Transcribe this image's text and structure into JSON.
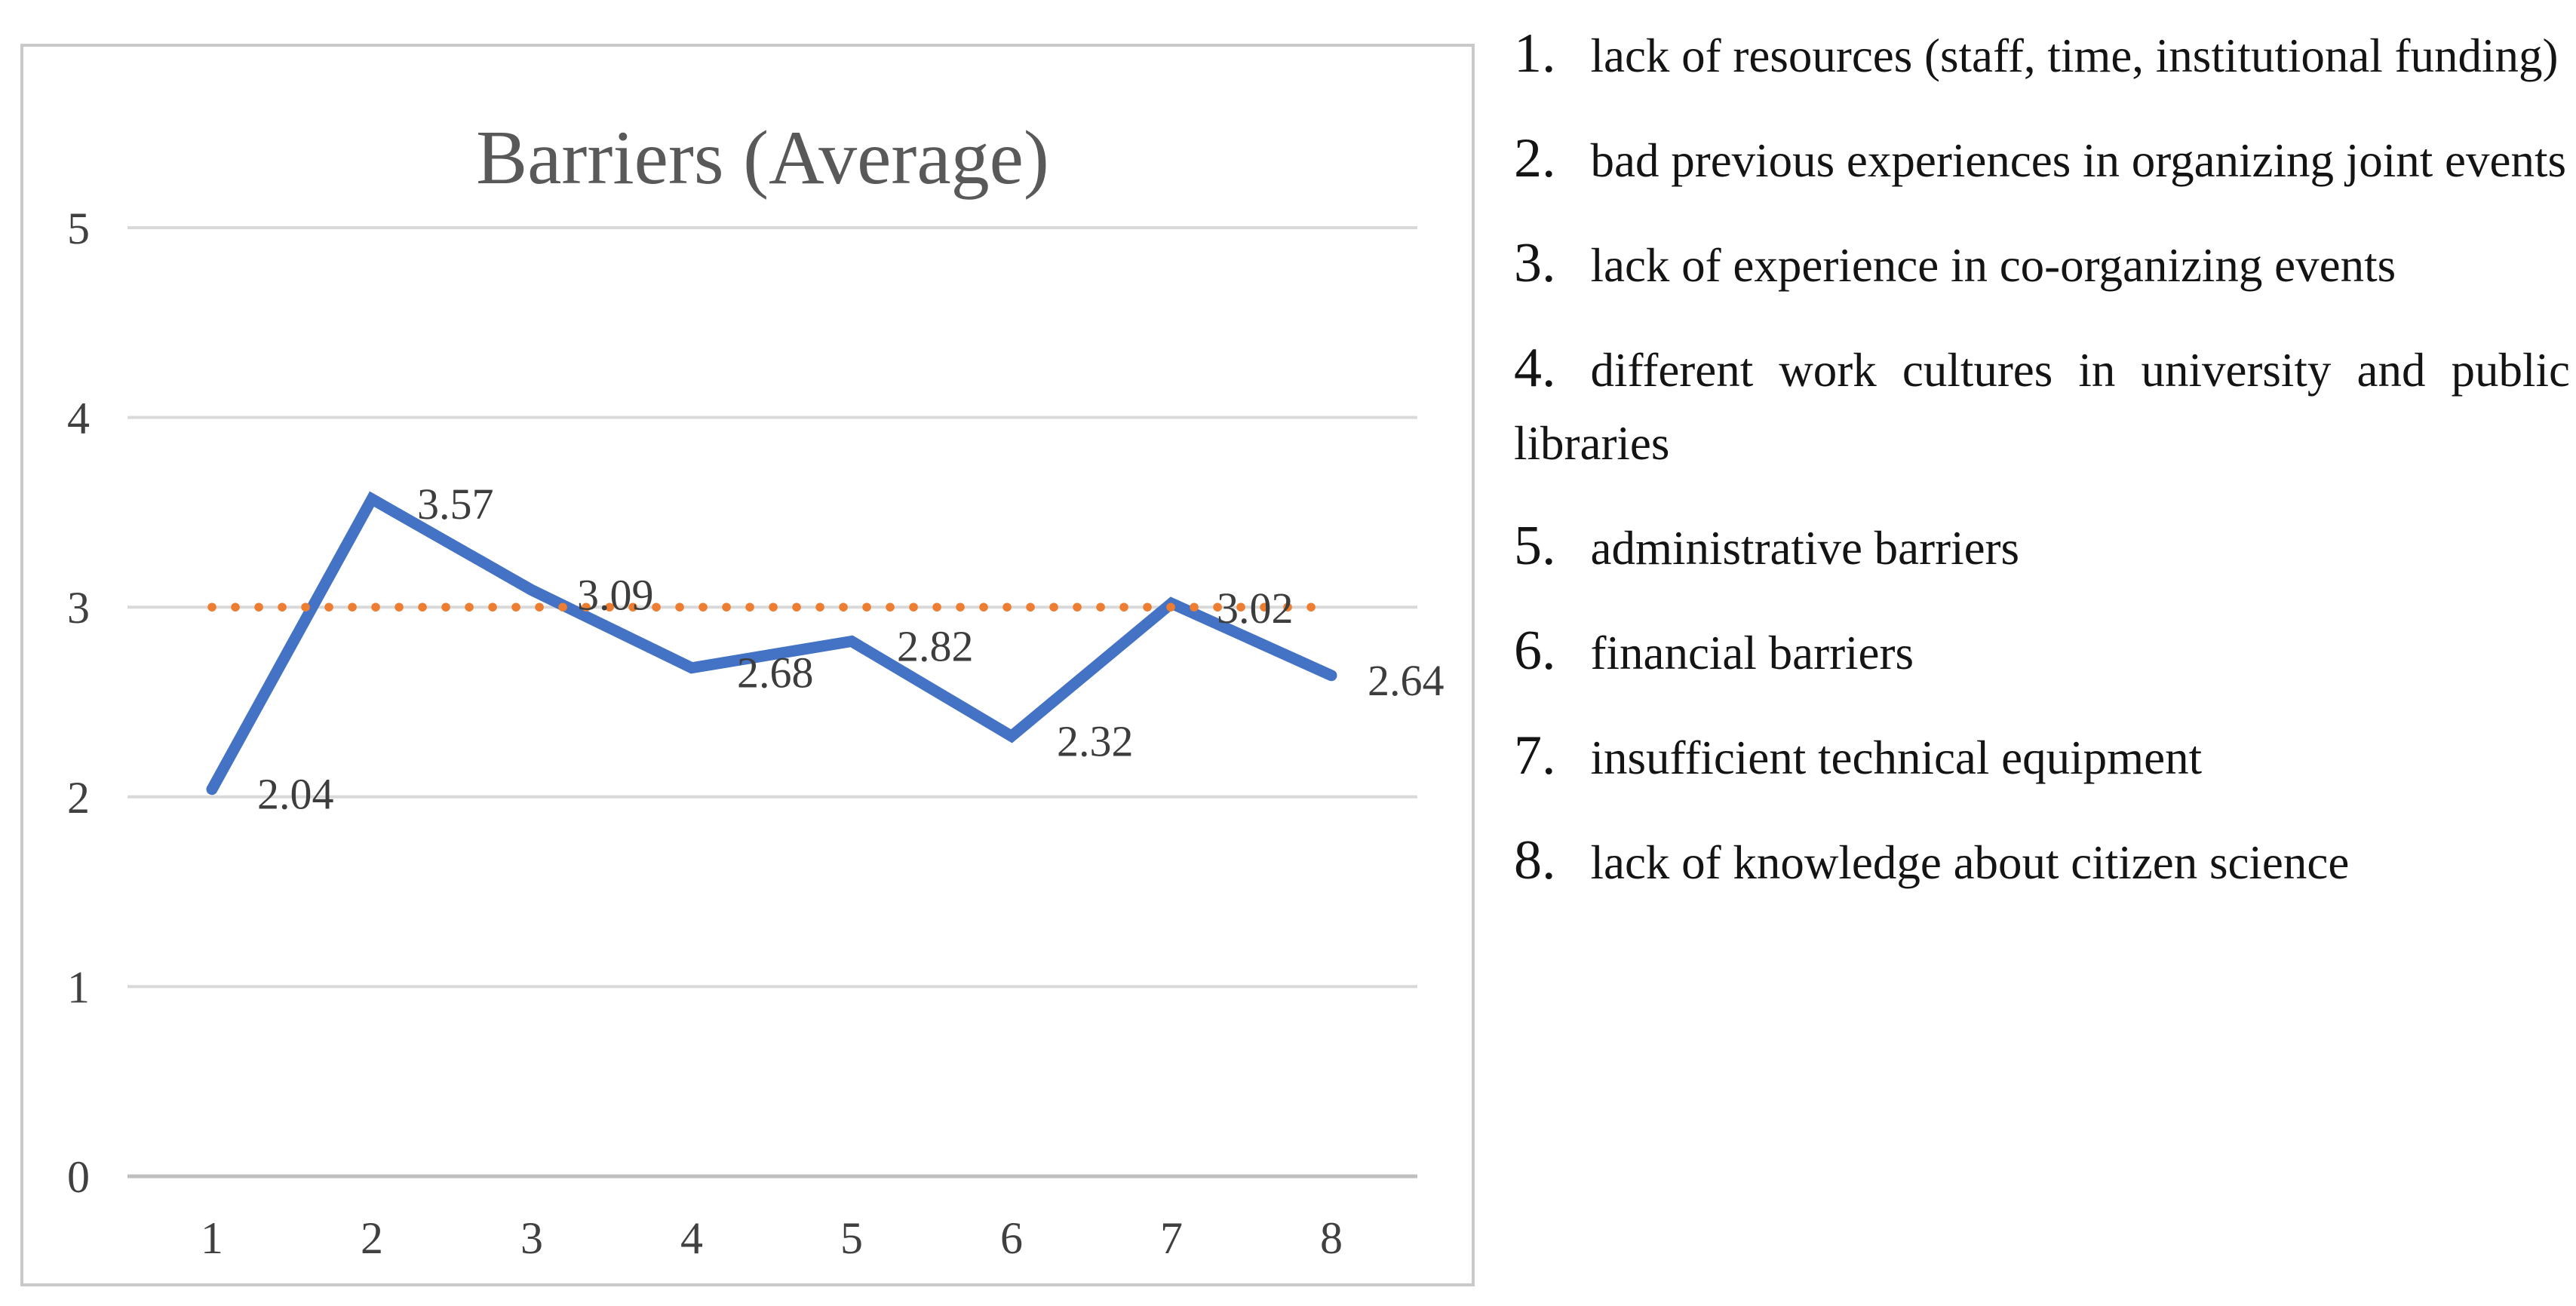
{
  "chart_data": {
    "type": "line",
    "title": "Barriers (Average)",
    "categories": [
      "1",
      "2",
      "3",
      "4",
      "5",
      "6",
      "7",
      "8"
    ],
    "series": [
      {
        "name": "barriers-average",
        "style": "solid",
        "color": "#4472C4",
        "values": [
          2.04,
          3.57,
          3.09,
          2.68,
          2.82,
          2.32,
          3.02,
          2.64
        ]
      },
      {
        "name": "reference-level",
        "style": "dotted",
        "color": "#ED7D31",
        "values": [
          3,
          3,
          3,
          3,
          3,
          3,
          3,
          3
        ]
      }
    ],
    "data_labels": [
      "2.04",
      "3.57",
      "3.09",
      "2.68",
      "2.82",
      "2.32",
      "3.02",
      "2.64"
    ],
    "xlabel": "",
    "ylabel": "",
    "ylim": [
      0,
      5
    ],
    "yticks": [
      "0",
      "1",
      "2",
      "3",
      "4",
      "5"
    ],
    "grid": "horizontal",
    "legend_position": "none"
  },
  "colors": {
    "line_blue": "#4472C4",
    "dot_orange": "#ED7D31",
    "gridline": "#D9D9D9",
    "axis_line": "#BFBFBF",
    "title_gray": "#595959",
    "tick_gray": "#404040",
    "data_label_gray": "#3D3D3D",
    "border_gray": "#C9C9C9"
  },
  "legend_list": {
    "items": [
      {
        "num": "1.",
        "text": "lack of resources (staff, time, institutional funding)"
      },
      {
        "num": "2.",
        "text": "bad previous experiences in organizing joint events"
      },
      {
        "num": "3.",
        "text": "lack of experience in co-organizing events"
      },
      {
        "num": "4.",
        "text": "different work cultures in university and public libraries"
      },
      {
        "num": "5.",
        "text": "administrative barriers"
      },
      {
        "num": "6.",
        "text": "financial barriers"
      },
      {
        "num": "7.",
        "text": "insufficient technical equipment"
      },
      {
        "num": "8.",
        "text": "lack of knowledge about citizen science"
      }
    ]
  }
}
